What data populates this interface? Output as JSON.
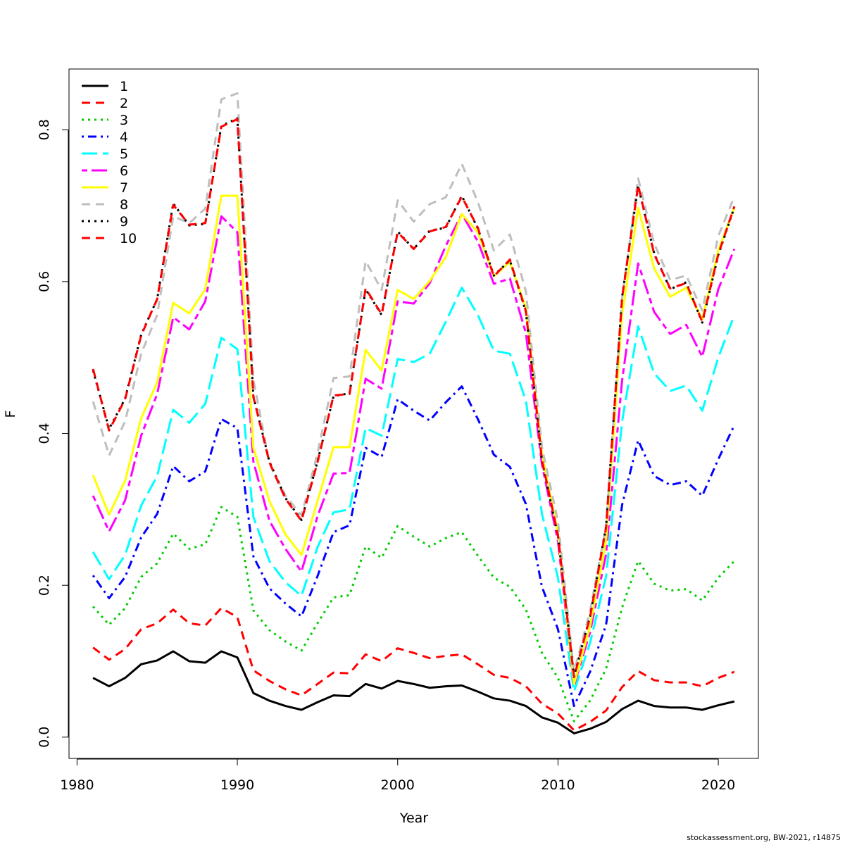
{
  "footer": "stockassessment.org, BW-2021, r14875",
  "chart_data": {
    "type": "line",
    "xlabel": "Year",
    "ylabel": "F",
    "xlim": [
      1979.5,
      2022.5
    ],
    "ylim": [
      -0.028,
      0.88
    ],
    "xticks": [
      1980,
      1990,
      2000,
      2010,
      2020
    ],
    "xtick_labels": [
      "1980",
      "1990",
      "2000",
      "2010",
      "2020"
    ],
    "yticks": [
      0.0,
      0.2,
      0.4,
      0.6,
      0.8
    ],
    "ytick_labels": [
      "0.0",
      "0.2",
      "0.4",
      "0.6",
      "0.8"
    ],
    "legend_position": "top-left",
    "grid": false,
    "x": [
      1981,
      1982,
      1983,
      1984,
      1985,
      1986,
      1987,
      1988,
      1989,
      1990,
      1991,
      1992,
      1993,
      1994,
      1995,
      1996,
      1997,
      1998,
      1999,
      2000,
      2001,
      2002,
      2003,
      2004,
      2005,
      2006,
      2007,
      2008,
      2009,
      2010,
      2011,
      2012,
      2013,
      2014,
      2015,
      2016,
      2017,
      2018,
      2019,
      2020,
      2021
    ],
    "series": [
      {
        "name": "1",
        "color": "#000000",
        "dash": "solid",
        "values": [
          0.078,
          0.067,
          0.078,
          0.096,
          0.101,
          0.113,
          0.1,
          0.098,
          0.113,
          0.105,
          0.058,
          0.048,
          0.041,
          0.036,
          0.046,
          0.055,
          0.054,
          0.07,
          0.064,
          0.074,
          0.07,
          0.065,
          0.067,
          0.068,
          0.06,
          0.051,
          0.048,
          0.041,
          0.026,
          0.019,
          0.005,
          0.011,
          0.02,
          0.037,
          0.048,
          0.041,
          0.039,
          0.039,
          0.036,
          0.042,
          0.047
        ]
      },
      {
        "name": "2",
        "color": "#ff0000",
        "dash": "dashed",
        "values": [
          0.118,
          0.102,
          0.116,
          0.142,
          0.15,
          0.168,
          0.15,
          0.147,
          0.17,
          0.158,
          0.088,
          0.074,
          0.063,
          0.055,
          0.07,
          0.085,
          0.084,
          0.109,
          0.1,
          0.117,
          0.111,
          0.104,
          0.107,
          0.109,
          0.096,
          0.082,
          0.078,
          0.067,
          0.044,
          0.031,
          0.009,
          0.02,
          0.035,
          0.066,
          0.087,
          0.075,
          0.072,
          0.072,
          0.067,
          0.078,
          0.086
        ]
      },
      {
        "name": "3",
        "color": "#00cd00",
        "dash": "dotted",
        "values": [
          0.172,
          0.148,
          0.17,
          0.211,
          0.229,
          0.268,
          0.248,
          0.254,
          0.303,
          0.29,
          0.167,
          0.141,
          0.126,
          0.114,
          0.15,
          0.184,
          0.187,
          0.251,
          0.236,
          0.278,
          0.264,
          0.251,
          0.262,
          0.27,
          0.239,
          0.21,
          0.198,
          0.168,
          0.111,
          0.078,
          0.021,
          0.048,
          0.09,
          0.171,
          0.232,
          0.202,
          0.193,
          0.195,
          0.18,
          0.21,
          0.232
        ]
      },
      {
        "name": "4",
        "color": "#0000ff",
        "dash": "dotdash",
        "values": [
          0.213,
          0.183,
          0.211,
          0.263,
          0.294,
          0.357,
          0.337,
          0.35,
          0.419,
          0.407,
          0.238,
          0.196,
          0.176,
          0.159,
          0.212,
          0.27,
          0.279,
          0.381,
          0.369,
          0.445,
          0.43,
          0.417,
          0.441,
          0.462,
          0.419,
          0.372,
          0.356,
          0.307,
          0.198,
          0.142,
          0.041,
          0.086,
          0.148,
          0.306,
          0.391,
          0.344,
          0.332,
          0.337,
          0.318,
          0.366,
          0.411
        ]
      },
      {
        "name": "5",
        "color": "#00ffff",
        "dash": "longdash",
        "values": [
          0.244,
          0.208,
          0.24,
          0.305,
          0.344,
          0.431,
          0.414,
          0.439,
          0.526,
          0.511,
          0.29,
          0.232,
          0.204,
          0.186,
          0.25,
          0.296,
          0.3,
          0.407,
          0.397,
          0.498,
          0.494,
          0.505,
          0.547,
          0.592,
          0.556,
          0.509,
          0.505,
          0.443,
          0.294,
          0.21,
          0.06,
          0.124,
          0.212,
          0.416,
          0.541,
          0.479,
          0.456,
          0.463,
          0.43,
          0.5,
          0.556
        ]
      },
      {
        "name": "6",
        "color": "#ff00ff",
        "dash": "twodash",
        "values": [
          0.318,
          0.271,
          0.312,
          0.397,
          0.452,
          0.553,
          0.537,
          0.574,
          0.686,
          0.665,
          0.363,
          0.285,
          0.248,
          0.218,
          0.291,
          0.347,
          0.348,
          0.472,
          0.459,
          0.574,
          0.571,
          0.598,
          0.647,
          0.689,
          0.653,
          0.597,
          0.604,
          0.532,
          0.359,
          0.258,
          0.068,
          0.138,
          0.241,
          0.47,
          0.624,
          0.56,
          0.531,
          0.543,
          0.501,
          0.59,
          0.643
        ]
      },
      {
        "name": "7",
        "color": "#ffff00",
        "dash": "solid",
        "values": [
          0.345,
          0.293,
          0.338,
          0.42,
          0.467,
          0.572,
          0.558,
          0.59,
          0.713,
          0.713,
          0.381,
          0.311,
          0.267,
          0.24,
          0.311,
          0.382,
          0.382,
          0.51,
          0.483,
          0.589,
          0.577,
          0.601,
          0.632,
          0.689,
          0.665,
          0.607,
          0.626,
          0.565,
          0.373,
          0.268,
          0.07,
          0.146,
          0.259,
          0.557,
          0.697,
          0.617,
          0.58,
          0.592,
          0.55,
          0.641,
          0.697
        ]
      },
      {
        "name": "8",
        "color": "#bebebe",
        "dash": "dashed",
        "values": [
          0.442,
          0.371,
          0.416,
          0.505,
          0.556,
          0.686,
          0.677,
          0.696,
          0.84,
          0.848,
          0.471,
          0.361,
          0.318,
          0.292,
          0.374,
          0.473,
          0.475,
          0.627,
          0.589,
          0.707,
          0.679,
          0.702,
          0.711,
          0.755,
          0.705,
          0.641,
          0.662,
          0.587,
          0.382,
          0.284,
          0.086,
          0.166,
          0.278,
          0.578,
          0.736,
          0.65,
          0.602,
          0.608,
          0.562,
          0.66,
          0.712
        ]
      },
      {
        "name": "9",
        "color": "#000000",
        "dash": "dotted",
        "values": [
          0.483,
          0.406,
          0.446,
          0.53,
          0.577,
          0.703,
          0.674,
          0.676,
          0.805,
          0.815,
          0.449,
          0.363,
          0.315,
          0.286,
          0.363,
          0.449,
          0.453,
          0.59,
          0.556,
          0.666,
          0.643,
          0.667,
          0.671,
          0.713,
          0.67,
          0.608,
          0.628,
          0.56,
          0.364,
          0.265,
          0.08,
          0.159,
          0.277,
          0.58,
          0.726,
          0.637,
          0.59,
          0.599,
          0.546,
          0.635,
          0.698
        ]
      },
      {
        "name": "10",
        "color": "#ff0000",
        "dash": "dashed",
        "values": [
          0.485,
          0.404,
          0.445,
          0.529,
          0.577,
          0.701,
          0.675,
          0.677,
          0.804,
          0.814,
          0.448,
          0.362,
          0.314,
          0.285,
          0.362,
          0.45,
          0.452,
          0.591,
          0.557,
          0.665,
          0.643,
          0.666,
          0.672,
          0.712,
          0.671,
          0.607,
          0.629,
          0.561,
          0.365,
          0.266,
          0.079,
          0.158,
          0.276,
          0.579,
          0.727,
          0.636,
          0.591,
          0.598,
          0.547,
          0.636,
          0.699
        ]
      }
    ]
  }
}
